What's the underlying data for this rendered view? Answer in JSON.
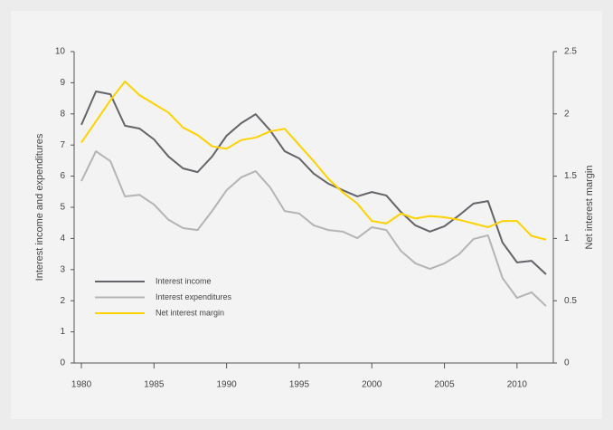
{
  "chart_data": {
    "type": "line",
    "x": [
      1980,
      1981,
      1982,
      1983,
      1984,
      1985,
      1986,
      1987,
      1988,
      1989,
      1990,
      1991,
      1992,
      1993,
      1994,
      1995,
      1996,
      1997,
      1998,
      1999,
      2000,
      2001,
      2002,
      2003,
      2004,
      2005,
      2006,
      2007,
      2008,
      2009,
      2010,
      2011,
      2012
    ],
    "series": [
      {
        "name": "Interest income",
        "color": "#646469",
        "values": [
          7.65,
          8.72,
          8.63,
          7.62,
          7.53,
          7.18,
          6.63,
          6.25,
          6.13,
          6.63,
          7.3,
          7.7,
          7.99,
          7.47,
          6.8,
          6.57,
          6.08,
          5.76,
          5.55,
          5.35,
          5.49,
          5.38,
          4.85,
          4.42,
          4.22,
          4.39,
          4.74,
          5.12,
          5.2,
          3.87,
          3.23,
          3.28,
          2.85
        ]
      },
      {
        "name": "Interest expenditures",
        "color": "#b4b4b4",
        "values": [
          5.84,
          6.8,
          6.48,
          5.35,
          5.4,
          5.09,
          4.6,
          4.33,
          4.27,
          4.88,
          5.55,
          5.96,
          6.16,
          5.64,
          4.88,
          4.8,
          4.42,
          4.27,
          4.22,
          4.01,
          4.36,
          4.27,
          3.6,
          3.2,
          3.02,
          3.2,
          3.49,
          3.98,
          4.1,
          2.73,
          2.09,
          2.27,
          1.83
        ]
      },
      {
        "name": "Net interest margin",
        "color": "#ffd200",
        "axis": "y2",
        "values": [
          1.77,
          1.94,
          2.11,
          2.26,
          2.15,
          2.08,
          2.01,
          1.89,
          1.83,
          1.74,
          1.72,
          1.79,
          1.81,
          1.86,
          1.88,
          1.75,
          1.62,
          1.48,
          1.37,
          1.28,
          1.14,
          1.12,
          1.2,
          1.16,
          1.18,
          1.17,
          1.15,
          1.12,
          1.09,
          1.14,
          1.14,
          1.02,
          0.99
        ]
      }
    ],
    "ylabel": "Interest income and expenditures",
    "y2label": "Net interest margin",
    "xlim": [
      1979.5,
      2012.5
    ],
    "xticks": [
      1980,
      1985,
      1990,
      1995,
      2000,
      2005,
      2010
    ],
    "ylim": [
      0,
      10
    ],
    "yticks": [
      0,
      1,
      2,
      3,
      4,
      5,
      6,
      7,
      8,
      9,
      10
    ],
    "y2lim": [
      0,
      2.5
    ],
    "y2ticks": [
      0,
      0.5,
      1,
      1.5,
      2,
      2.5
    ],
    "legend": "lower left"
  }
}
